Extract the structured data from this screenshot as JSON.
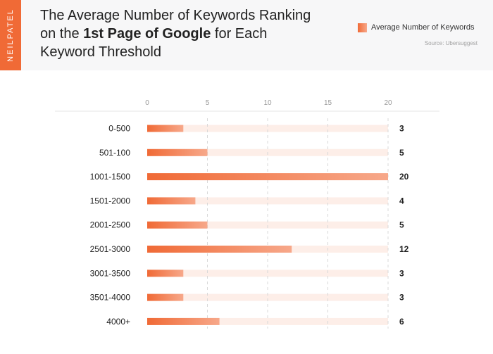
{
  "brand": {
    "text": "NEILPATEL"
  },
  "header": {
    "title_part1": "The Average Number of Keywords Ranking on the ",
    "title_bold": "1st Page of Google",
    "title_part2": " for Each Keyword Threshold",
    "legend_label": "Average Number of Keywords",
    "source": "Source: Ubersuggest"
  },
  "colors": {
    "accent": "#f06a36",
    "accent_light": "#f7a88a",
    "track": "#fdeee8",
    "header_bg": "#f7f7f8"
  },
  "chart_data": {
    "type": "bar",
    "orientation": "horizontal",
    "title": "The Average Number of Keywords Ranking on the 1st Page of Google for Each Keyword Threshold",
    "categories": [
      "0-500",
      "501-100",
      "1001-1500",
      "1501-2000",
      "2001-2500",
      "2501-3000",
      "3001-3500",
      "3501-4000",
      "4000+"
    ],
    "values": [
      3,
      5,
      20,
      4,
      5,
      12,
      3,
      3,
      6
    ],
    "value_labels": [
      "3",
      "5",
      "20",
      "4",
      "5",
      "12",
      "3",
      "3",
      "6"
    ],
    "series": [
      {
        "name": "Average Number of Keywords",
        "values": [
          3,
          5,
          20,
          4,
          5,
          12,
          3,
          3,
          6
        ]
      }
    ],
    "xlim": [
      0,
      20
    ],
    "xticks": [
      0,
      5,
      10,
      15,
      20
    ],
    "grid": true,
    "legend_position": "top-right"
  }
}
